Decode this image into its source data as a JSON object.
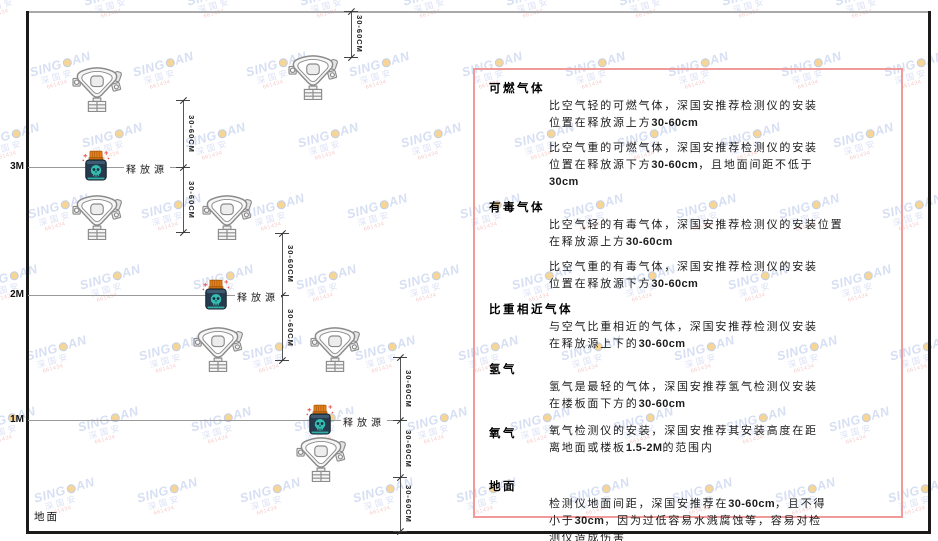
{
  "watermark": {
    "brand_prefix": "SING",
    "brand_suffix": "AN",
    "subtitle": "深国安",
    "contact": "661434"
  },
  "diagram": {
    "scale_labels": [
      "3M",
      "2M",
      "1M"
    ],
    "ground_label": "地面",
    "release_source_label": "释放源",
    "dimension_label": "30-60CM"
  },
  "panel": {
    "sections": [
      {
        "heading": "可燃气体",
        "inline": false,
        "paragraphs": [
          {
            "lines": [
              "比空气轻的可燃气体，深国安推荐检测仪的安装",
              "位置在释放源上方30-60cm"
            ]
          },
          {
            "lines": [
              "比空气重的可燃气体，深国安推荐检测仪的安装",
              "位置在释放源下方30-60cm，且地面间距不低于",
              "30cm"
            ]
          }
        ]
      },
      {
        "heading": "有毒气体",
        "inline": false,
        "paragraphs": [
          {
            "lines": [
              "比空气轻的有毒气体，深国安推荐检测仪的安装位置",
              "在释放源上方30-60cm"
            ]
          },
          {
            "lines": [
              "比空气重的有毒气体，深国安推荐检测仪的安装",
              "位置在释放源下方30-60cm"
            ]
          }
        ]
      },
      {
        "heading": "比重相近气体",
        "inline": false,
        "paragraphs": [
          {
            "lines": [
              "与空气比重相近的气体，深国安推荐检测仪安装",
              "在释放源上下的30-60cm"
            ]
          }
        ]
      },
      {
        "heading": "氢气",
        "inline": false,
        "paragraphs": [
          {
            "lines": [
              "氢气是最轻的气体，深国安推荐氢气检测仪安装",
              "在楼板面下方的30-60cm"
            ]
          }
        ]
      },
      {
        "heading": "氧气",
        "inline": true,
        "paragraphs": [
          {
            "lines": [
              "氧气检测仪的安装，深国安推荐其安装高度在距",
              "离地面或楼板1.5-2M的范围内"
            ]
          }
        ]
      },
      {
        "heading": "地面",
        "inline": false,
        "gap": true,
        "paragraphs": [
          {
            "lines": [
              "检测仪地面间距，深国安推荐在30-60cm，且不得",
              "小于30cm，因为过低容易水溅腐蚀等，容易对检",
              "测仪造成伤害"
            ]
          }
        ]
      }
    ]
  },
  "colors": {
    "panel_border": "#f09a9a",
    "watermark_blue": "#b7c5ea",
    "watermark_red": "#ef9f9f",
    "release_source_body": "#253a4d",
    "release_source_cap": "#e6801f",
    "release_source_face": "#35bdb2",
    "detector_outline": "#8b8b8b",
    "spark_red": "#f05050"
  }
}
